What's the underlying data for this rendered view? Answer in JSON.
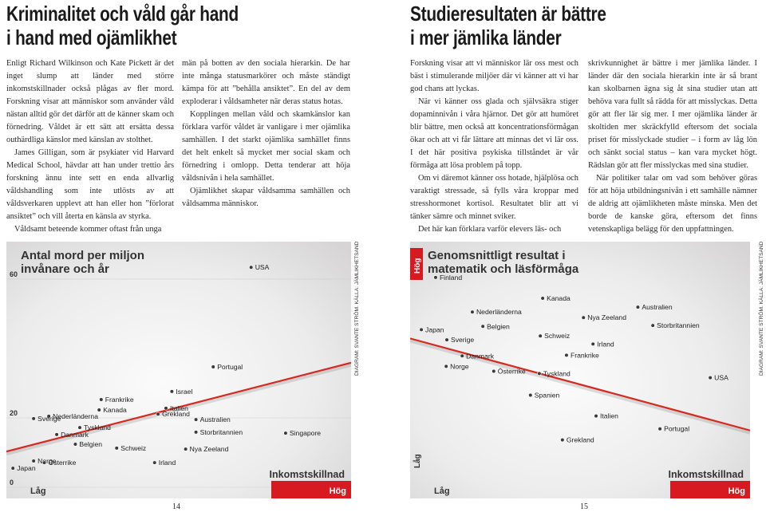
{
  "left_page": {
    "title": [
      "Kriminalitet och våld går hand",
      "i hand med ojämlikhet"
    ],
    "columns": [
      [
        "Enligt Richard Wilkinson och Kate Pickett är det inget slump att länder med större inkomstskillnader också plågas av fler mord. Forskning visar att människor som använder våld nästan alltid gör det därför att de känner skam och förnedring. Våldet är ett sätt att ersätta dessa outhärdliga känslor med känslan av stolthet.",
        "James Gilligan, som är psykiater vid Harvard Medical School, hävdar att han under trettio års forskning ännu inte sett en enda allvarlig våldshandling som inte utlösts av att våldsverkaren upplevt att han eller hon ”förlorat ansiktet” och vill återta en känsla av styrka.",
        "Våldsamt beteende kommer oftast från unga"
      ],
      [
        "män på botten av den sociala hierarkin. De har inte många statusmarkörer och måste ständigt kämpa för att ”behålla ansiktet”. En del av dem exploderar i våldsamheter när deras status hotas.",
        "Kopplingen mellan våld och skamkänslor kan förklara varför våldet är vanligare i mer ojämlika samhällen. I det starkt ojämlika samhället finns det helt enkelt så mycket mer social skam och förnedring i omlopp. Detta tenderar att höja våldsnivån i hela samhället.",
        "Ojämlikhet skapar våldsamma samhällen och våldsamma människor."
      ]
    ],
    "page_number": "14"
  },
  "right_page": {
    "title": [
      "Studieresultaten är bättre",
      "i mer jämlika länder"
    ],
    "columns": [
      [
        "Forskning visar att vi människor lär oss mest och bäst i stimulerande miljöer där vi känner att vi har god chans att lyckas.",
        "När vi känner oss glada och självsäkra stiger dopaminnivån i våra hjärnor. Det gör att humöret blir bättre, men också att koncentrationsförmågan ökar och att vi får lättare att minnas det vi lär oss. I det här positiva psykiska tillståndet är vår förmåga att lösa problem på topp.",
        "Om vi däremot känner oss hotade, hjälplösa och varaktigt stressade, så fylls våra kroppar med stresshormonet kortisol. Resultatet blir att vi tänker sämre och minnet sviker.",
        "Det här kan förklara varför elevers läs- och"
      ],
      [
        "skrivkunnighet är bättre i mer jämlika länder. I länder där den sociala hierarkin inte är så brant kan skolbarnen ägna sig åt sina studier utan att behöva vara fullt så rädda för att misslyckas. Detta gör att fler lär sig mer. I mer ojämlika länder är skoltiden mer skräckfylld eftersom det sociala priset för misslyckade studier – i form av låg lön och sänkt social status – kan vara mycket högt. Rädslan gör att fler misslyckas med sina studier.",
        "När politiker talar om vad som behöver göras för att höja utbildningsnivån i ett samhälle nämner de aldrig att ojämlikheten måste minska. Men det borde de kanske göra, eftersom det finns vetenskapliga belägg för den uppfattningen."
      ]
    ],
    "page_number": "15"
  },
  "chart_data": [
    {
      "type": "scatter",
      "title": [
        "Antal mord per miljon",
        "invånare och år"
      ],
      "credit": "DIAGRAM: SVANTE STRÖM. KÄLLA: JÄMLIKHETSANDEN",
      "x_label": "Inkomstskillnad",
      "x_low": "Låg",
      "x_high": "Hög",
      "categories": [
        "USA",
        "Portugal",
        "Israel",
        "Frankrike",
        "Kanada",
        "Italien",
        "Nederländerna",
        "Sverige",
        "Grekland",
        "Australien",
        "Tyskland",
        "Storbritannien",
        "Singapore",
        "Danmark",
        "Belgien",
        "Schweiz",
        "Nya Zeeland",
        "Norge",
        "Österrike",
        "Irland",
        "Japan"
      ],
      "x": [
        71,
        60,
        48,
        27.5,
        26.9,
        46.3,
        12.3,
        7.9,
        44,
        55,
        21.3,
        55,
        81,
        14.6,
        20,
        32,
        52,
        7.9,
        11,
        43,
        1.9
      ],
      "values": [
        63.4,
        34.7,
        27.6,
        25.3,
        22.3,
        22.8,
        20.5,
        19.8,
        21.1,
        19.5,
        17.2,
        15.9,
        15.6,
        15.2,
        12.4,
        11.3,
        11,
        7.6,
        7.1,
        7.1,
        5.5
      ],
      "trend": {
        "x": [
          0,
          100
        ],
        "values": [
          10.3,
          35.9
        ]
      },
      "xlim": [
        0,
        100
      ],
      "ylim": [
        0,
        70.8
      ],
      "yticks": [
        0,
        20,
        60
      ],
      "grid": true,
      "color": "#3a3a3a",
      "trend_color": "#d42a20"
    },
    {
      "type": "scatter",
      "title": [
        "Genomsnittligt resultat i",
        "matematik och läsförmåga"
      ],
      "credit": "DIAGRAM: SVANTE STRÖM. KÄLLA: JÄMLIKHETSANDEN",
      "x_label": "Inkomstskillnad",
      "x_low": "Låg",
      "x_high": "Hög",
      "y_low": "Låg",
      "y_high": "Hög",
      "categories": [
        "Finland",
        "Kanada",
        "Nederländerna",
        "Australien",
        "Nya Zeeland",
        "Belgien",
        "Storbritannien",
        "Japan",
        "Sverige",
        "Schweiz",
        "Irland",
        "Danmark",
        "Frankrike",
        "Norge",
        "Österrike",
        "Tyskland",
        "USA",
        "Spanien",
        "Italien",
        "Portugal",
        "Grekland"
      ],
      "x": [
        7.5,
        39,
        18.3,
        67,
        51,
        21.4,
        71.4,
        3.3,
        10.8,
        38.3,
        53.8,
        15.3,
        46,
        10.6,
        24.6,
        38,
        88.3,
        35.4,
        54.7,
        73.5,
        44.8
      ],
      "values": [
        86.6,
        77.6,
        71.7,
        73.8,
        69.3,
        65.5,
        65.9,
        64.1,
        59.7,
        61.4,
        57.9,
        52.8,
        53.1,
        48.3,
        46.2,
        45.2,
        43.4,
        35.9,
        26.9,
        21.4,
        16.6
      ],
      "trend": {
        "x": [
          0,
          100
        ],
        "values": [
          60.3,
          20.7
        ]
      },
      "xlim": [
        0,
        100
      ],
      "ylim": [
        0,
        102
      ],
      "color": "#3a3a3a",
      "trend_color": "#d42a20"
    }
  ]
}
